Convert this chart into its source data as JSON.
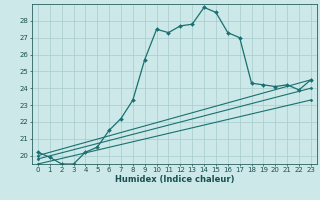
{
  "xlabel": "Humidex (Indice chaleur)",
  "background_color": "#cce8e8",
  "line_color": "#1a7070",
  "grid_color": "#a8cccc",
  "xlim": [
    -0.5,
    23.5
  ],
  "ylim": [
    19.5,
    29.0
  ],
  "xticks": [
    0,
    1,
    2,
    3,
    4,
    5,
    6,
    7,
    8,
    9,
    10,
    11,
    12,
    13,
    14,
    15,
    16,
    17,
    18,
    19,
    20,
    21,
    22,
    23
  ],
  "yticks": [
    20,
    21,
    22,
    23,
    24,
    25,
    26,
    27,
    28
  ],
  "series": [
    {
      "x": [
        0,
        1,
        2,
        3,
        4,
        5,
        6,
        7,
        8,
        9,
        10,
        11,
        12,
        13,
        14,
        15,
        16,
        17,
        18,
        19,
        20,
        21,
        22,
        23
      ],
      "y": [
        20.2,
        19.9,
        19.5,
        19.5,
        20.2,
        20.5,
        21.5,
        22.2,
        23.3,
        25.7,
        27.5,
        27.3,
        27.7,
        27.8,
        28.8,
        28.5,
        27.3,
        27.0,
        24.3,
        24.2,
        24.1,
        24.2,
        23.9,
        24.5
      ],
      "with_markers": true
    },
    {
      "x": [
        0,
        23
      ],
      "y": [
        20.0,
        24.5
      ],
      "with_markers": false
    },
    {
      "x": [
        0,
        23
      ],
      "y": [
        19.8,
        24.0
      ],
      "with_markers": false
    },
    {
      "x": [
        0,
        23
      ],
      "y": [
        19.5,
        23.3
      ],
      "with_markers": false
    }
  ],
  "marker": "D",
  "markersize_main": 2.0,
  "markersize_small": 1.5,
  "linewidth_main": 0.9,
  "linewidth_diag": 0.8,
  "tick_fontsize": 5.0,
  "xlabel_fontsize": 6.0,
  "tick_color": "#1a5050",
  "spine_color": "#2a6060"
}
